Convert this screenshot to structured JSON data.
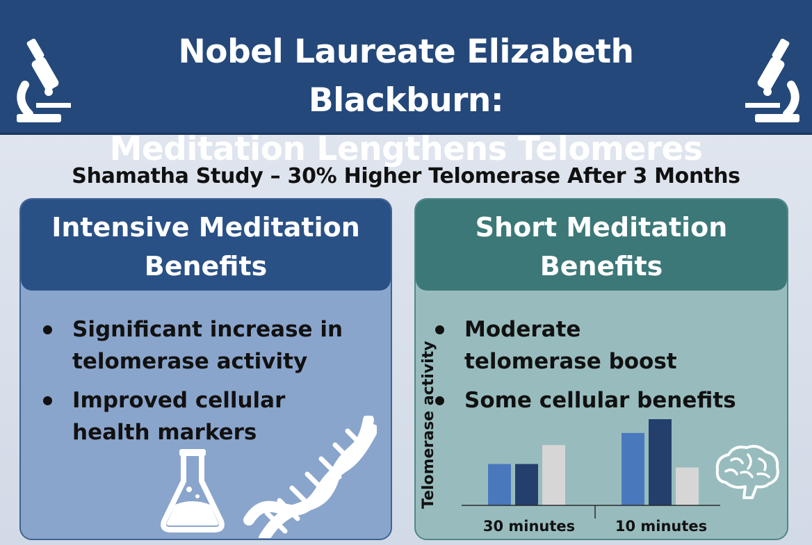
{
  "header": {
    "title_line1": "Nobel Laureate Elizabeth Blackburn:",
    "title_line2": "Meditation Lengthens Telomeres",
    "icons": [
      "microscope-icon",
      "microscope-icon"
    ]
  },
  "subtitle": "Shamatha Study – 30% Higher Telomerase After 3 Months",
  "left_panel": {
    "heading_line1": "Intensive Meditation",
    "heading_line2": "Benefits",
    "bullets": [
      {
        "line1": "Significant increase in",
        "line2": "telomerase activity"
      },
      {
        "line1": "Improved cellular",
        "line2": "health markers"
      }
    ],
    "icons": [
      "flask-icon",
      "dna-icon"
    ]
  },
  "right_panel": {
    "heading_line1": "Short Meditation",
    "heading_line2": "Benefits",
    "bullets": [
      {
        "line1": "Moderate",
        "line2": "telomerase boost"
      },
      {
        "line1": "Some cellular benefits",
        "line2": ""
      }
    ],
    "icons": [
      "brain-icon"
    ]
  },
  "colors": {
    "header_bg": "#24487a",
    "left_panel_bg": "#8aa5cc",
    "left_heading_bg": "#2a5185",
    "right_panel_bg": "#98bcbe",
    "right_heading_bg": "#3c7878",
    "bar_light_blue": "#4a78bd",
    "bar_dark_blue": "#243f6c",
    "bar_gray": "#d6d6d6"
  },
  "chart_data": {
    "type": "bar",
    "title": "",
    "xlabel": "",
    "ylabel": "Telomerase activity",
    "categories": [
      "30 minutes",
      "10 minutes"
    ],
    "series": [
      {
        "color": "#4a78bd",
        "values": [
          0.48,
          0.84
        ]
      },
      {
        "color": "#243f6c",
        "values": [
          0.48,
          1.0
        ]
      },
      {
        "color": "#d6d6d6",
        "values": [
          0.7,
          0.44
        ]
      }
    ],
    "ylim": [
      0,
      1.0
    ],
    "grid": false,
    "legend": "none"
  }
}
